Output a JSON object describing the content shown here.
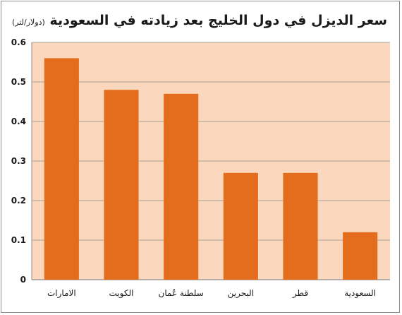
{
  "chart_data": {
    "type": "bar",
    "title": "سعر الديزل في دول الخليج بعد زيادته في السعودية",
    "unit": "(دولار/لتر)",
    "categories": [
      "الامارات",
      "الكويت",
      "سلطنة عُمان",
      "البحرين",
      "قطر",
      "السعودية"
    ],
    "values": [
      0.56,
      0.48,
      0.47,
      0.27,
      0.27,
      0.12
    ],
    "yticks": [
      "0",
      "0.1",
      "0.2",
      "0.3",
      "0.4",
      "0.5",
      "0.6"
    ],
    "ylim": [
      0,
      0.6
    ],
    "grid": true,
    "legend": "none",
    "colors": {
      "bar": "#e36c1d",
      "plot_bg": "#fbd8bd",
      "grid": "#8c8c8c"
    }
  }
}
